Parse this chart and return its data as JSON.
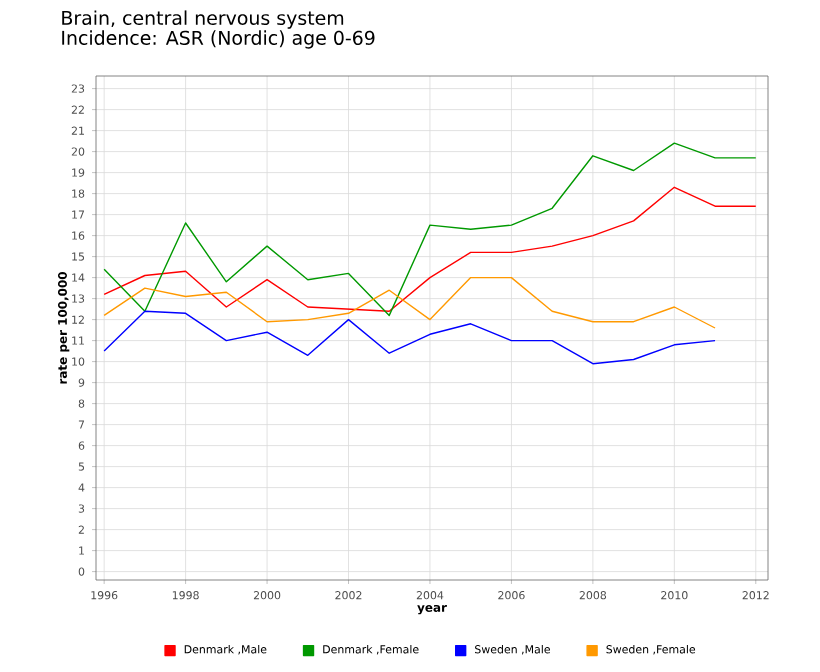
{
  "chart_data": {
    "type": "line",
    "title": "Brain, central nervous system",
    "subtitle": "Incidence: ASR (Nordic) age 0-69",
    "xlabel": "year",
    "ylabel": "rate per 100,000",
    "x": [
      1996,
      1997,
      1998,
      1999,
      2000,
      2001,
      2002,
      2003,
      2004,
      2005,
      2006,
      2007,
      2008,
      2009,
      2010,
      2011,
      2012
    ],
    "series": [
      {
        "name": "Denmark ,Male",
        "color": "#ff0000",
        "values": [
          13.2,
          14.1,
          14.3,
          12.6,
          13.9,
          12.6,
          12.5,
          12.4,
          14.0,
          15.2,
          15.2,
          15.5,
          16.0,
          16.7,
          18.3,
          17.4,
          17.4
        ]
      },
      {
        "name": "Denmark ,Female",
        "color": "#009900",
        "values": [
          14.4,
          12.4,
          16.6,
          13.8,
          15.5,
          13.9,
          14.2,
          12.2,
          16.5,
          16.3,
          16.5,
          17.3,
          19.8,
          19.1,
          20.4,
          19.7,
          19.7
        ]
      },
      {
        "name": "Sweden ,Male",
        "color": "#0000ff",
        "values": [
          10.5,
          12.4,
          12.3,
          11.0,
          11.4,
          10.3,
          12.0,
          10.4,
          11.3,
          11.8,
          11.0,
          11.0,
          9.9,
          10.1,
          10.8,
          11.0,
          null
        ]
      },
      {
        "name": "Sweden ,Female",
        "color": "#ff9900",
        "values": [
          12.2,
          13.5,
          13.1,
          13.3,
          11.9,
          12.0,
          12.3,
          13.4,
          12.0,
          14.0,
          14.0,
          12.4,
          11.9,
          11.9,
          12.6,
          11.6,
          null
        ]
      }
    ],
    "xlim": [
      1995.8,
      2012.3
    ],
    "ylim": [
      -0.4,
      23.6
    ],
    "xticks": [
      1996,
      1998,
      2000,
      2002,
      2004,
      2006,
      2008,
      2010,
      2012
    ],
    "yticks": [
      0,
      1,
      2,
      3,
      4,
      5,
      6,
      7,
      8,
      9,
      10,
      11,
      12,
      13,
      14,
      15,
      16,
      17,
      18,
      19,
      20,
      21,
      22,
      23
    ],
    "grid": true,
    "legend": "bottom",
    "marker": "none",
    "line_style": "solid"
  }
}
